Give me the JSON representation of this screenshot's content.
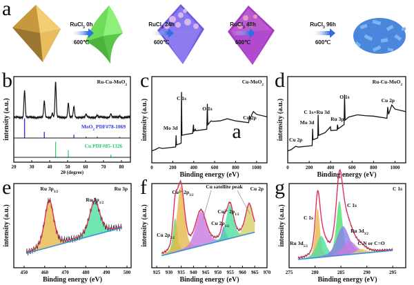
{
  "panel_a": {
    "label": "a",
    "steps": [
      {
        "reagent": "RuCl",
        "sub": "3",
        "time": "0h",
        "temp": "600℃"
      },
      {
        "reagent": "RuCl",
        "sub": "3",
        "time": "24h",
        "temp": "600℃"
      },
      {
        "reagent": "RuCl",
        "sub": "3",
        "time": "48h",
        "temp": "600℃"
      },
      {
        "reagent": "RuCl",
        "sub": "3",
        "time": "96h",
        "temp": "600℃"
      }
    ],
    "stages": [
      {
        "name": "octahedron-gold",
        "color": "#e0b85a"
      },
      {
        "name": "octahedron-green",
        "color": "#7be05f"
      },
      {
        "name": "octahedron-blue-porous",
        "color": "#7b66e8"
      },
      {
        "name": "octahedron-purple-porous",
        "color": "#b446c8"
      },
      {
        "name": "blue-fragments",
        "color": "#5a9ae8"
      }
    ]
  },
  "chart_data": [
    {
      "panel": "b",
      "type": "line",
      "title": "Ru-Cu-MoO2",
      "xlabel": "2θ (degree)",
      "ylabel": "intensity (a.u.)",
      "xlim": [
        20,
        85
      ],
      "xticks": [
        20,
        30,
        40,
        50,
        60,
        70,
        80
      ],
      "series": [
        {
          "name": "Ru-Cu-MoO2",
          "color": "#111111",
          "peaks": [
            [
              26,
              0.75
            ],
            [
              37,
              0.45
            ],
            [
              41.5,
              0.12
            ],
            [
              43.3,
              1.0
            ],
            [
              50.4,
              0.4
            ],
            [
              53.5,
              0.3
            ],
            [
              60.3,
              0.08
            ],
            [
              66.5,
              0.06
            ],
            [
              74.1,
              0.1
            ],
            [
              79,
              0.04
            ]
          ]
        },
        {
          "name": "MoO2 PDF#78-1069",
          "color": "#3333dd",
          "sticks": [
            [
              26,
              1.0
            ],
            [
              37,
              0.3
            ],
            [
              53.5,
              0.15
            ],
            [
              60.3,
              0.05
            ],
            [
              66.5,
              0.05
            ],
            [
              79,
              0.04
            ]
          ]
        },
        {
          "name": "Cu PDF#85-1326",
          "color": "#22cc66",
          "sticks": [
            [
              43.3,
              1.0
            ],
            [
              50.4,
              0.45
            ],
            [
              74.1,
              0.15
            ]
          ]
        }
      ],
      "labels": [
        "MoO2 PDF#78-1069",
        "Cu PDF#85-1326"
      ]
    },
    {
      "panel": "c",
      "type": "line",
      "title": "Cu-MoO2",
      "xlabel": "Binding energy (eV)",
      "ylabel": "intensity (a.u.)",
      "xlim": [
        0,
        1100
      ],
      "xticks": [
        0,
        200,
        400,
        600,
        800,
        1000
      ],
      "overlay_letter": "a",
      "annotations": [
        {
          "text": "Mo 3d",
          "x": 232
        },
        {
          "text": "C 1s",
          "x": 284
        },
        {
          "text": "O 1s",
          "x": 530
        },
        {
          "text": "Cu 2p",
          "x": 935
        }
      ],
      "points": [
        [
          0,
          0.05
        ],
        [
          30,
          0.08
        ],
        [
          70,
          0.1
        ],
        [
          100,
          0.1
        ],
        [
          228,
          0.11
        ],
        [
          232,
          0.3
        ],
        [
          236,
          0.14
        ],
        [
          280,
          0.18
        ],
        [
          284,
          0.95
        ],
        [
          288,
          0.3
        ],
        [
          320,
          0.3
        ],
        [
          390,
          0.33
        ],
        [
          398,
          0.45
        ],
        [
          402,
          0.36
        ],
        [
          415,
          0.38
        ],
        [
          420,
          0.37
        ],
        [
          525,
          0.38
        ],
        [
          530,
          0.78
        ],
        [
          535,
          0.45
        ],
        [
          565,
          0.52
        ],
        [
          580,
          0.5
        ],
        [
          650,
          0.52
        ],
        [
          720,
          0.54
        ],
        [
          800,
          0.52
        ],
        [
          925,
          0.48
        ],
        [
          932,
          0.6
        ],
        [
          940,
          0.53
        ],
        [
          955,
          0.62
        ],
        [
          970,
          0.65
        ],
        [
          1000,
          0.62
        ],
        [
          1100,
          0.57
        ]
      ]
    },
    {
      "panel": "d",
      "type": "line",
      "title": "Ru-Cu-MoO2",
      "xlabel": "Binding energy (eV)",
      "ylabel": "intensity (a.u.)",
      "xlim": [
        0,
        1100
      ],
      "xticks": [
        0,
        200,
        400,
        600,
        800,
        1000
      ],
      "annotations": [
        {
          "text": "Cu 2p",
          "x": 75
        },
        {
          "text": "Mo 3d",
          "x": 232
        },
        {
          "text": "C 1s+Ru 3d",
          "x": 284
        },
        {
          "text": "Ru 3p",
          "x": 462
        },
        {
          "text": "O 1s",
          "x": 530
        },
        {
          "text": "Cu 2p",
          "x": 935
        }
      ],
      "points": [
        [
          0,
          0.05
        ],
        [
          30,
          0.08
        ],
        [
          75,
          0.12
        ],
        [
          100,
          0.12
        ],
        [
          228,
          0.13
        ],
        [
          232,
          0.4
        ],
        [
          236,
          0.22
        ],
        [
          280,
          0.26
        ],
        [
          284,
          0.6
        ],
        [
          288,
          0.3
        ],
        [
          350,
          0.33
        ],
        [
          398,
          0.43
        ],
        [
          402,
          0.36
        ],
        [
          460,
          0.38
        ],
        [
          464,
          0.45
        ],
        [
          470,
          0.4
        ],
        [
          525,
          0.45
        ],
        [
          530,
          0.92
        ],
        [
          535,
          0.52
        ],
        [
          570,
          0.58
        ],
        [
          650,
          0.6
        ],
        [
          720,
          0.6
        ],
        [
          800,
          0.58
        ],
        [
          925,
          0.56
        ],
        [
          932,
          0.72
        ],
        [
          940,
          0.62
        ],
        [
          970,
          0.75
        ],
        [
          1000,
          0.7
        ],
        [
          1100,
          0.65
        ]
      ]
    },
    {
      "panel": "e",
      "type": "area",
      "title": "Ru 3p",
      "xlabel": "Binding energy (eV)",
      "ylabel": "intensity (a.u.)",
      "xlim": [
        445,
        502
      ],
      "xticks": [
        450,
        460,
        470,
        480,
        490,
        500
      ],
      "annotations": [
        {
          "text": "Ru 3p3/2",
          "x": 462.2
        },
        {
          "text": "Ru 3p1/2",
          "x": 484.3
        }
      ],
      "components": [
        {
          "name": "Ru 3p3/2",
          "center": 462.2,
          "height": 0.62,
          "width": 2.2,
          "color": "#e6b84a"
        },
        {
          "name": "Ru 3p1/2",
          "center": 484.3,
          "height": 0.45,
          "width": 2.5,
          "color": "#4ee0a0"
        }
      ],
      "baseline": [
        [
          451,
          0.08
        ],
        [
          497.5,
          0.42
        ]
      ]
    },
    {
      "panel": "f",
      "type": "area",
      "title": "Cu 2p",
      "xlabel": "Binding energy (eV)",
      "ylabel": "intensity (a.u.)",
      "xlim": [
        923,
        970
      ],
      "xticks": [
        925,
        930,
        935,
        940,
        945,
        950,
        955,
        960,
        965,
        970
      ],
      "annotations": [
        {
          "text": "Cu 2p3/2",
          "x": 932.5
        },
        {
          "text": "Cu2+ 2p3/2",
          "x": 934.8
        },
        {
          "text": "Cu satellite peak",
          "x": 943
        },
        {
          "text": "Cu 2p1/2",
          "x": 952.3
        },
        {
          "text": "Cu2+ 2p1/2",
          "x": 954.8
        }
      ],
      "components": [
        {
          "name": "Cu 2p3/2",
          "center": 932.5,
          "height": 0.45,
          "width": 0.9,
          "color": "#66d66a"
        },
        {
          "name": "Cu2+ 2p3/2",
          "center": 934.8,
          "height": 0.85,
          "width": 1.5,
          "color": "#e6b84a"
        },
        {
          "name": "Cu satellite 1",
          "center": 943,
          "height": 0.45,
          "width": 2.2,
          "color": "#c77ae0"
        },
        {
          "name": "Cu 2p1/2",
          "center": 952.3,
          "height": 0.18,
          "width": 0.8,
          "color": "#7a7ae8"
        },
        {
          "name": "Cu2+ 2p1/2",
          "center": 954.8,
          "height": 0.45,
          "width": 1.5,
          "color": "#4ee0a0"
        },
        {
          "name": "Cu satellite 2",
          "center": 962.7,
          "height": 0.38,
          "width": 1.5,
          "color": "#d6d06a"
        }
      ],
      "baseline": [
        [
          927,
          0.05
        ],
        [
          965,
          0.36
        ]
      ]
    },
    {
      "panel": "g",
      "type": "area",
      "title": "C 1s",
      "xlabel": "Binding energy (eV)",
      "ylabel": "intensity (a.u.)",
      "xlim": [
        275,
        297.5
      ],
      "xticks": [
        275,
        280,
        285,
        290,
        295
      ],
      "annotations": [
        {
          "text": "Ru 3d5/2",
          "x": 279.5
        },
        {
          "text": "C 1s",
          "x": 280.5
        },
        {
          "text": "C 1s",
          "x": 284.8
        },
        {
          "text": "Ru 3d3/2",
          "x": 286
        },
        {
          "text": "C-N or C=O",
          "x": 288.9
        }
      ],
      "components": [
        {
          "name": "Ru 3d5/2",
          "center": 280.5,
          "height": 0.65,
          "width": 0.45,
          "color": "#e6b84a"
        },
        {
          "name": "C 1s (a)",
          "center": 281.2,
          "height": 0.28,
          "width": 0.9,
          "color": "#4ee0a0"
        },
        {
          "name": "C 1s (b)",
          "center": 284.7,
          "height": 0.72,
          "width": 0.6,
          "color": "#4ee070"
        },
        {
          "name": "Ru 3d3/2",
          "center": 285.4,
          "height": 0.38,
          "width": 1.2,
          "color": "#8a80e8"
        },
        {
          "name": "C 1s broad",
          "center": 286.6,
          "height": 0.18,
          "width": 1.3,
          "color": "#c77ae0"
        },
        {
          "name": "C-N or C=O",
          "center": 288.9,
          "height": 0.06,
          "width": 1.0,
          "color": "#e6d06a"
        }
      ],
      "baseline": [
        [
          276.7,
          0.0
        ],
        [
          295,
          0.12
        ]
      ]
    }
  ],
  "panel_labels": [
    "a",
    "b",
    "c",
    "d",
    "e",
    "f",
    "g"
  ]
}
